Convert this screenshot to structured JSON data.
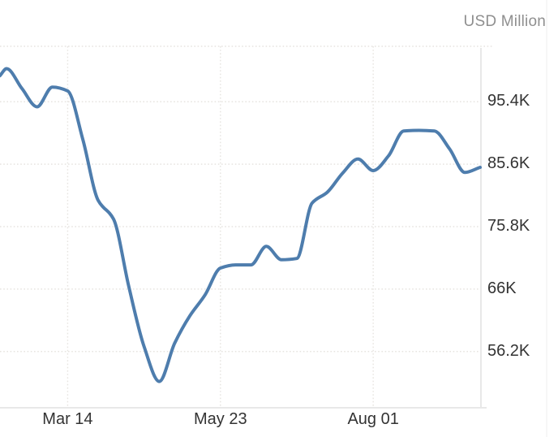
{
  "header": {
    "unit_label": "USD Million"
  },
  "colors": {
    "line": "#4e7dad",
    "grid": "#e7e4e0",
    "axis_border": "#e8e8e8",
    "edge_line": "#efefef",
    "tick_text": "#333333",
    "unit_text": "#8f8f8f",
    "background": "#ffffff"
  },
  "chart_data": {
    "type": "line",
    "unit": "USD Million",
    "legend": "none",
    "grid": "dotted",
    "x_domain_days": [
      0,
      220
    ],
    "ylim": [
      47.5,
      104.1
    ],
    "x_ticks": [
      {
        "label": "Mar 14",
        "day": 31
      },
      {
        "label": "May 23",
        "day": 101
      },
      {
        "label": "Aug 01",
        "day": 171
      }
    ],
    "y_ticks": [
      {
        "label": "95.4K",
        "value": 95.4
      },
      {
        "label": "85.6K",
        "value": 85.6
      },
      {
        "label": "75.8K",
        "value": 75.8
      },
      {
        "label": "66K",
        "value": 66.0
      },
      {
        "label": "56.2K",
        "value": 56.2
      }
    ],
    "series": [
      {
        "name": "value-usd-million-thousands",
        "points": [
          {
            "day": 0,
            "value": 99.5
          },
          {
            "day": 3,
            "value": 100.6
          },
          {
            "day": 10,
            "value": 97.5
          },
          {
            "day": 17,
            "value": 94.6
          },
          {
            "day": 24,
            "value": 97.7
          },
          {
            "day": 31,
            "value": 97.1
          },
          {
            "day": 38,
            "value": 89.4
          },
          {
            "day": 45,
            "value": 79.9
          },
          {
            "day": 52,
            "value": 77.0
          },
          {
            "day": 59,
            "value": 66.4
          },
          {
            "day": 66,
            "value": 57.0
          },
          {
            "day": 73,
            "value": 51.5
          },
          {
            "day": 80,
            "value": 57.5
          },
          {
            "day": 87,
            "value": 61.8
          },
          {
            "day": 94,
            "value": 65.1
          },
          {
            "day": 101,
            "value": 69.3
          },
          {
            "day": 108,
            "value": 69.8
          },
          {
            "day": 115,
            "value": 69.8
          },
          {
            "day": 122,
            "value": 72.7
          },
          {
            "day": 129,
            "value": 70.6
          },
          {
            "day": 136,
            "value": 70.8
          },
          {
            "day": 143,
            "value": 79.5
          },
          {
            "day": 150,
            "value": 81.2
          },
          {
            "day": 157,
            "value": 84.2
          },
          {
            "day": 164,
            "value": 86.4
          },
          {
            "day": 171,
            "value": 84.6
          },
          {
            "day": 178,
            "value": 86.9
          },
          {
            "day": 185,
            "value": 90.8
          },
          {
            "day": 192,
            "value": 90.9
          },
          {
            "day": 199,
            "value": 90.8
          },
          {
            "day": 206,
            "value": 88.0
          },
          {
            "day": 213,
            "value": 84.3
          },
          {
            "day": 220,
            "value": 85.1
          }
        ]
      }
    ]
  }
}
